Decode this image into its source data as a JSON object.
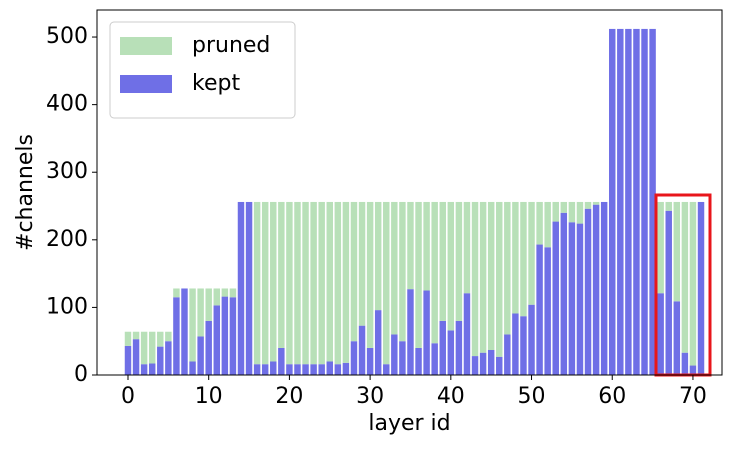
{
  "chart_data": {
    "type": "stacked-bar",
    "x": [
      0,
      1,
      2,
      3,
      4,
      5,
      6,
      7,
      8,
      9,
      10,
      11,
      12,
      13,
      14,
      15,
      16,
      17,
      18,
      19,
      20,
      21,
      22,
      23,
      24,
      25,
      26,
      27,
      28,
      29,
      30,
      31,
      32,
      33,
      34,
      35,
      36,
      37,
      38,
      39,
      40,
      41,
      42,
      43,
      44,
      45,
      46,
      47,
      48,
      49,
      50,
      51,
      52,
      53,
      54,
      55,
      56,
      57,
      58,
      59,
      60,
      61,
      62,
      63,
      64,
      65,
      66,
      67,
      68,
      69,
      70,
      71
    ],
    "series": [
      {
        "name": "pruned",
        "color": "#b8e0b8",
        "values": [
          21,
          11,
          48,
          47,
          22,
          14,
          13,
          0,
          108,
          71,
          48,
          25,
          12,
          13,
          0,
          0,
          240,
          240,
          236,
          216,
          240,
          240,
          240,
          240,
          240,
          236,
          240,
          238,
          206,
          183,
          216,
          160,
          240,
          196,
          206,
          129,
          216,
          131,
          209,
          176,
          190,
          176,
          135,
          228,
          223,
          219,
          229,
          196,
          165,
          169,
          152,
          63,
          67,
          29,
          16,
          30,
          32,
          10,
          4,
          0,
          0,
          0,
          0,
          0,
          0,
          0,
          135,
          13,
          147,
          223,
          242,
          0
        ]
      },
      {
        "name": "kept",
        "color": "#6f6fe6",
        "values": [
          43,
          53,
          16,
          17,
          42,
          50,
          115,
          128,
          20,
          57,
          80,
          103,
          116,
          115,
          256,
          256,
          16,
          16,
          20,
          40,
          16,
          16,
          16,
          16,
          16,
          20,
          16,
          18,
          50,
          73,
          40,
          96,
          16,
          60,
          50,
          127,
          40,
          125,
          47,
          80,
          66,
          80,
          121,
          28,
          33,
          37,
          27,
          60,
          91,
          87,
          104,
          193,
          189,
          227,
          240,
          226,
          224,
          246,
          252,
          256,
          512,
          512,
          512,
          512,
          512,
          512,
          121,
          243,
          109,
          33,
          14,
          256
        ]
      }
    ],
    "x_label": "layer id",
    "y_label": "#channels",
    "xlim": [
      -3.84,
      73.6
    ],
    "ylim": [
      0,
      540
    ],
    "xticks": [
      0,
      10,
      20,
      30,
      40,
      50,
      60,
      70
    ],
    "yticks": [
      0,
      100,
      200,
      300,
      400,
      500
    ],
    "legend": "upper left"
  }
}
